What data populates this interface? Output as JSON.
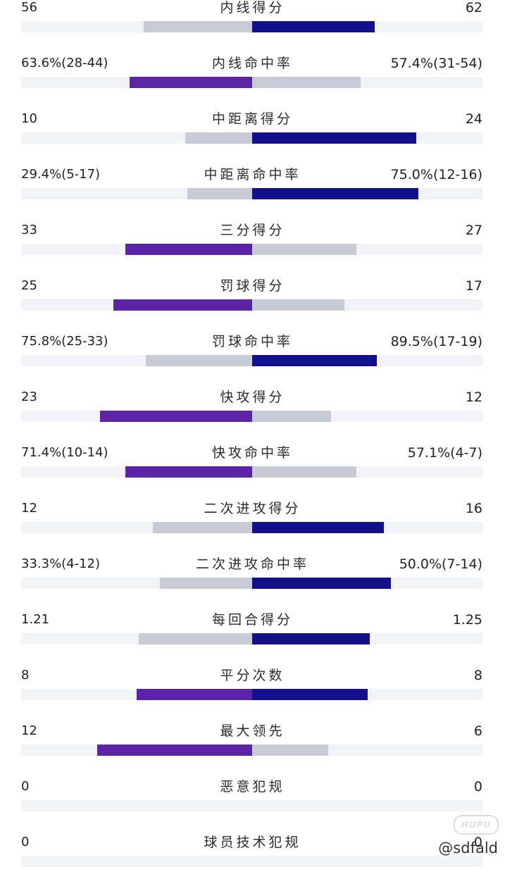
{
  "colors": {
    "team_left": "#5b24a6",
    "team_right": "#12108a",
    "loser_bar": "#c8cbd5",
    "track": "#f2f3f6"
  },
  "stats": [
    {
      "label": "内线得分",
      "left": "56",
      "right": "62",
      "left_frac": 0.47,
      "right_frac": 0.53,
      "leader": "right"
    },
    {
      "label": "内线命中率",
      "left": "63.6%(28-44)",
      "right": "57.4%(31-54)",
      "left_frac": 0.53,
      "right_frac": 0.47,
      "leader": "left"
    },
    {
      "label": "中距离得分",
      "left": "10",
      "right": "24",
      "left_frac": 0.29,
      "right_frac": 0.71,
      "leader": "right"
    },
    {
      "label": "中距离命中率",
      "left": "29.4%(5-17)",
      "right": "75.0%(12-16)",
      "left_frac": 0.28,
      "right_frac": 0.72,
      "leader": "right"
    },
    {
      "label": "三分得分",
      "left": "33",
      "right": "27",
      "left_frac": 0.55,
      "right_frac": 0.45,
      "leader": "left"
    },
    {
      "label": "罚球得分",
      "left": "25",
      "right": "17",
      "left_frac": 0.6,
      "right_frac": 0.4,
      "leader": "left"
    },
    {
      "label": "罚球命中率",
      "left": "75.8%(25-33)",
      "right": "89.5%(17-19)",
      "left_frac": 0.46,
      "right_frac": 0.54,
      "leader": "right"
    },
    {
      "label": "快攻得分",
      "left": "23",
      "right": "12",
      "left_frac": 0.66,
      "right_frac": 0.34,
      "leader": "left"
    },
    {
      "label": "快攻命中率",
      "left": "71.4%(10-14)",
      "right": "57.1%(4-7)",
      "left_frac": 0.55,
      "right_frac": 0.45,
      "leader": "left"
    },
    {
      "label": "二次进攻得分",
      "left": "12",
      "right": "16",
      "left_frac": 0.43,
      "right_frac": 0.57,
      "leader": "right"
    },
    {
      "label": "二次进攻命中率",
      "left": "33.3%(4-12)",
      "right": "50.0%(7-14)",
      "left_frac": 0.4,
      "right_frac": 0.6,
      "leader": "right"
    },
    {
      "label": "每回合得分",
      "left": "1.21",
      "right": "1.25",
      "left_frac": 0.49,
      "right_frac": 0.51,
      "leader": "right"
    },
    {
      "label": "平分次数",
      "left": "8",
      "right": "8",
      "left_frac": 0.5,
      "right_frac": 0.5,
      "leader": "both"
    },
    {
      "label": "最大领先",
      "left": "12",
      "right": "6",
      "left_frac": 0.67,
      "right_frac": 0.33,
      "leader": "left"
    },
    {
      "label": "恶意犯规",
      "left": "0",
      "right": "0",
      "left_frac": 0,
      "right_frac": 0,
      "leader": "none"
    },
    {
      "label": "球员技术犯规",
      "left": "0",
      "right": "0",
      "left_frac": 0,
      "right_frac": 0,
      "leader": "none"
    }
  ],
  "watermark": {
    "logo_text": "HUPU",
    "user": "@sdfald"
  }
}
